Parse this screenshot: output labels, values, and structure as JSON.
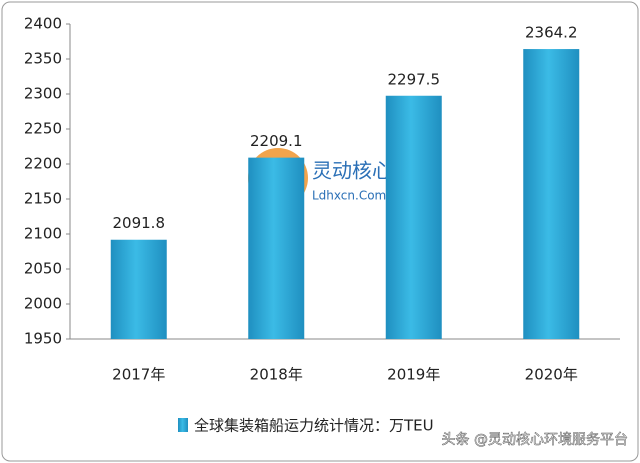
{
  "chart_data": {
    "type": "bar",
    "categories": [
      "2017年",
      "2018年",
      "2019年",
      "2020年"
    ],
    "values": [
      2091.8,
      2209.1,
      2297.5,
      2364.2
    ],
    "color": "#2eaadc",
    "ylim": [
      1950,
      2400
    ],
    "yticks": [
      1950,
      2000,
      2050,
      2100,
      2150,
      2200,
      2250,
      2300,
      2350,
      2400
    ],
    "grid": false,
    "legend_label": "全球集装箱船运力统计情况：万TEU",
    "watermark_name": "灵动核心",
    "watermark_site": "Ldhxcn.Com",
    "source_watermark": "头条 @灵动核心环境服务平台"
  }
}
